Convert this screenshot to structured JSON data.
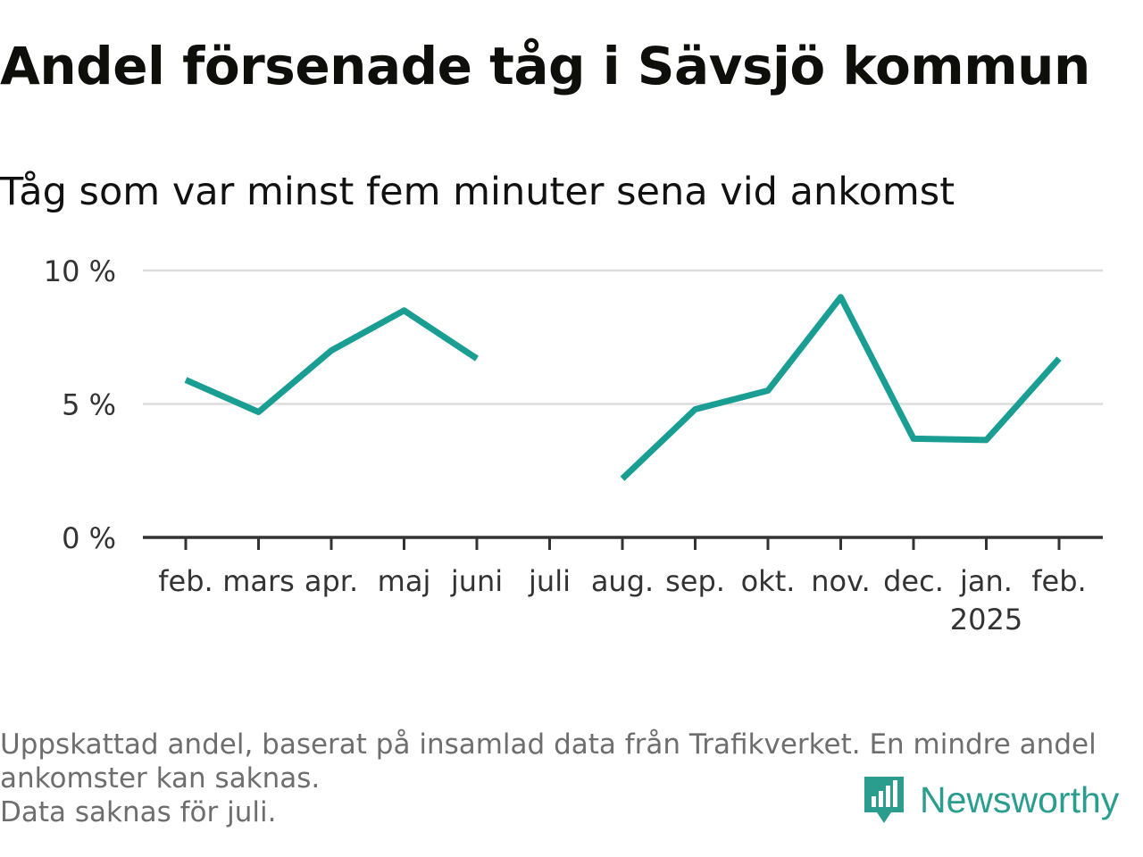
{
  "title": "Andel försenade tåg i Sävsjö kommun",
  "subtitle": "Tåg som var minst fem minuter sena vid ankomst",
  "footnote": [
    "Uppskattad andel, baserat på insamlad data från Trafikverket. En mindre andel",
    "ankomster kan saknas.",
    "Data saknas för juli."
  ],
  "brand": "Newsworthy",
  "colors": {
    "line": "#1a9e94",
    "grid": "#dddddd",
    "axis": "#333333",
    "brand": "#2a9d8f"
  },
  "chart_data": {
    "type": "line",
    "categories": [
      "feb.",
      "mars",
      "apr.",
      "maj",
      "juni",
      "juli",
      "aug.",
      "sep.",
      "okt.",
      "nov.",
      "dec.",
      "jan.",
      "feb."
    ],
    "category_sublabels": [
      "",
      "",
      "",
      "",
      "",
      "",
      "",
      "",
      "",
      "",
      "",
      "2025",
      ""
    ],
    "series": [
      {
        "values": [
          5.9,
          4.7,
          7.0,
          8.5,
          6.7,
          null,
          2.2,
          4.8,
          5.5,
          9.0,
          3.7,
          3.65,
          6.7
        ]
      }
    ],
    "yticks": [
      0,
      5,
      10
    ],
    "ytick_labels": [
      "0 %",
      "5 %",
      "10 %"
    ],
    "ylim": [
      0,
      10
    ],
    "grid": true,
    "legend": "none"
  }
}
